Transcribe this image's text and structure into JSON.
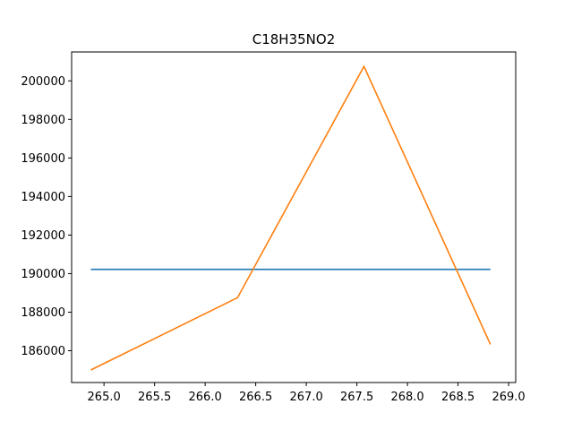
{
  "chart_data": {
    "type": "line",
    "title": "C18H35NO2",
    "xlabel": "",
    "ylabel": "",
    "xlim": [
      264.68,
      269.07
    ],
    "ylim": [
      184350,
      201500
    ],
    "xticks": [
      265.0,
      265.5,
      266.0,
      266.5,
      267.0,
      267.5,
      268.0,
      268.5,
      269.0
    ],
    "xtick_labels": [
      "265.0",
      "265.5",
      "266.0",
      "266.5",
      "267.0",
      "267.5",
      "268.0",
      "268.5",
      "269.0"
    ],
    "yticks": [
      186000,
      188000,
      190000,
      192000,
      194000,
      196000,
      198000,
      200000
    ],
    "ytick_labels": [
      "186000",
      "188000",
      "190000",
      "192000",
      "194000",
      "196000",
      "198000",
      "200000"
    ],
    "grid": false,
    "series": [
      {
        "color": "#1f77b4",
        "x": [
          264.87,
          268.82
        ],
        "y": [
          190220,
          190220
        ]
      },
      {
        "color": "#ff7f0e",
        "x": [
          264.87,
          266.32,
          267.57,
          268.82
        ],
        "y": [
          185000,
          188750,
          200750,
          186330
        ]
      }
    ]
  }
}
